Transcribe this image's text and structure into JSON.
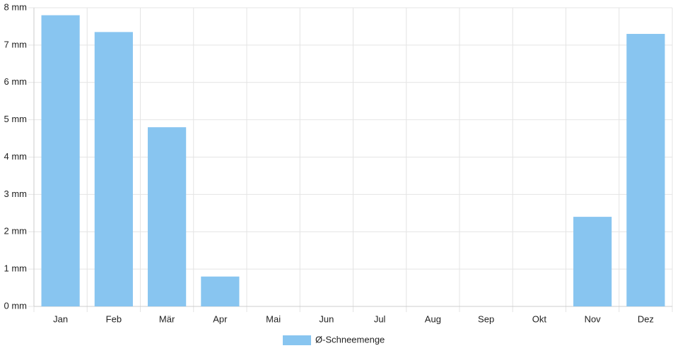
{
  "chart_data": {
    "type": "bar",
    "categories": [
      "Jan",
      "Feb",
      "Mär",
      "Apr",
      "Mai",
      "Jun",
      "Jul",
      "Aug",
      "Sep",
      "Okt",
      "Nov",
      "Dez"
    ],
    "series": [
      {
        "name": "Ø-Schneemenge",
        "color": "#88c5f0",
        "values": [
          7.8,
          7.35,
          4.8,
          0.8,
          0,
          0,
          0,
          0,
          0,
          0,
          2.4,
          7.3
        ]
      }
    ],
    "ylim": [
      0,
      8
    ],
    "yticks": [
      {
        "value": 0,
        "label": "0 mm"
      },
      {
        "value": 1,
        "label": "1 mm"
      },
      {
        "value": 2,
        "label": "2 mm"
      },
      {
        "value": 3,
        "label": "3 mm"
      },
      {
        "value": 4,
        "label": "4 mm"
      },
      {
        "value": 5,
        "label": "5 mm"
      },
      {
        "value": 6,
        "label": "6 mm"
      },
      {
        "value": 7,
        "label": "7 mm"
      },
      {
        "value": 8,
        "label": "8 mm"
      }
    ],
    "grid": true,
    "legend": "bottom"
  }
}
